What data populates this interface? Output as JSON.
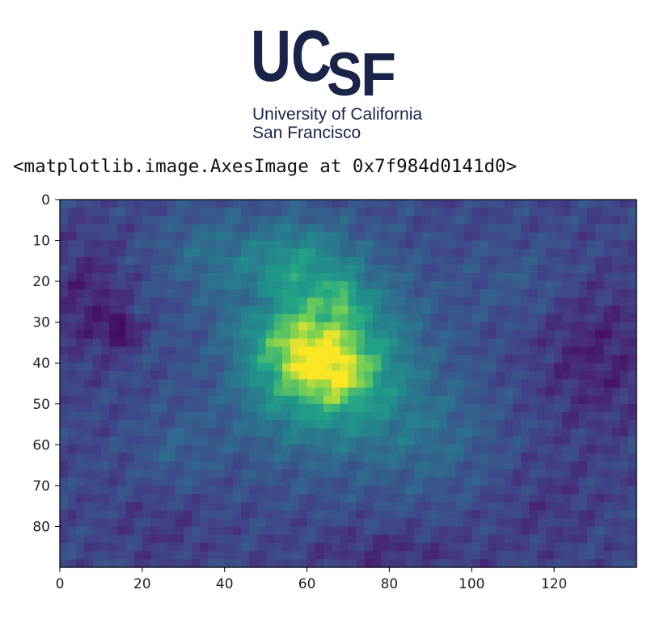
{
  "logo": {
    "brand_letters": "UCSF",
    "line1": "University of California",
    "line2": "San Francisco",
    "color": "#1a2448"
  },
  "output_text": "<matplotlib.image.AxesImage at 0x7f984d0141d0>",
  "chart_data": {
    "type": "heatmap",
    "title": "",
    "xlabel": "",
    "ylabel": "",
    "colormap": "viridis",
    "image_shape": [
      90,
      140
    ],
    "xlim": [
      0,
      140
    ],
    "ylim": [
      90,
      0
    ],
    "y_axis_inverted": true,
    "grid": false,
    "x_ticks": [
      0,
      20,
      40,
      60,
      80,
      100,
      120
    ],
    "y_ticks": [
      0,
      10,
      20,
      30,
      40,
      50,
      60,
      70,
      80
    ],
    "value_range": [
      0,
      1
    ],
    "background_value": 0.27,
    "features": [
      {
        "center": [
          62,
          37
        ],
        "radius": [
          22,
          22
        ],
        "value": 0.55
      },
      {
        "center": [
          68,
          43
        ],
        "radius": [
          11,
          10
        ],
        "value": 0.22
      },
      {
        "center": [
          58,
          37
        ],
        "radius": [
          10,
          9
        ],
        "value": 0.12
      },
      {
        "center": [
          69,
          24
        ],
        "radius": [
          4,
          5
        ],
        "value": 0.18
      },
      {
        "center": [
          57,
          14
        ],
        "radius": [
          12,
          10
        ],
        "value": 0.2
      },
      {
        "center": [
          35,
          12
        ],
        "radius": [
          12,
          10
        ],
        "value": 0.14
      },
      {
        "center": [
          90,
          58
        ],
        "radius": [
          18,
          16
        ],
        "value": 0.14
      },
      {
        "center": [
          28,
          62
        ],
        "radius": [
          10,
          10
        ],
        "value": 0.1
      },
      {
        "center": [
          112,
          20
        ],
        "radius": [
          14,
          10
        ],
        "value": 0.08
      },
      {
        "center": [
          15,
          32
        ],
        "radius": [
          4,
          4
        ],
        "value": -0.22
      },
      {
        "center": [
          48,
          25
        ],
        "radius": [
          4,
          3
        ],
        "value": -0.16
      },
      {
        "center": [
          7,
          25
        ],
        "radius": [
          9,
          14
        ],
        "value": -0.14
      },
      {
        "center": [
          130,
          38
        ],
        "radius": [
          14,
          18
        ],
        "value": -0.14
      },
      {
        "center": [
          80,
          86
        ],
        "radius": [
          20,
          6
        ],
        "value": -0.1
      },
      {
        "center": [
          25,
          80
        ],
        "radius": [
          12,
          10
        ],
        "value": -0.06
      },
      {
        "center": [
          38,
          40
        ],
        "radius": [
          8,
          12
        ],
        "value": -0.06
      },
      {
        "center": [
          118,
          75
        ],
        "radius": [
          14,
          12
        ],
        "value": -0.06
      }
    ]
  }
}
